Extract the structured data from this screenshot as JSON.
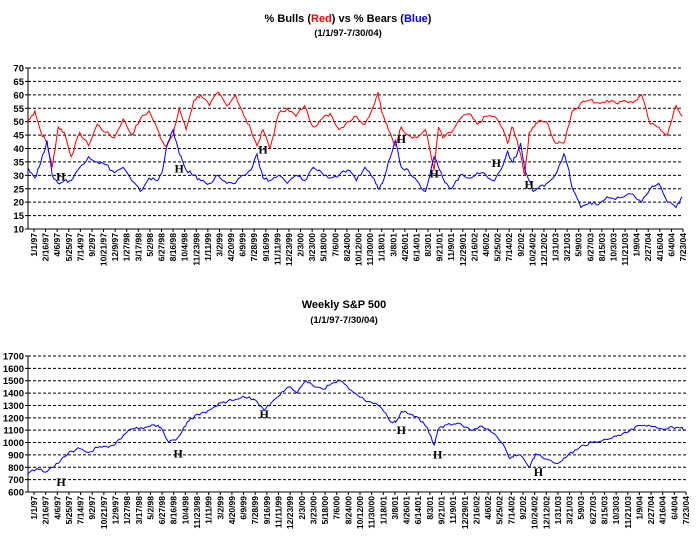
{
  "chart_data": [
    {
      "type": "line",
      "title_parts": [
        {
          "text": "% Bulls (",
          "color": "#000000"
        },
        {
          "text": "Red",
          "color": "#ff0000"
        },
        {
          "text": ") vs % Bears (",
          "color": "#000000"
        },
        {
          "text": "Blue",
          "color": "#0000ff"
        },
        {
          "text": ")",
          "color": "#000000"
        }
      ],
      "subtitle": "(1/1/97-7/30/04)",
      "ylim": [
        10,
        70
      ],
      "yticks": [
        10,
        15,
        20,
        25,
        30,
        35,
        40,
        45,
        50,
        55,
        60,
        65,
        70
      ],
      "grid": "horizontal dashed",
      "x_tick_labels": [
        "1/1/97",
        "2/16/97",
        "4/6/97",
        "5/25/97",
        "7/14/97",
        "9/2/97",
        "10/21/97",
        "12/9/97",
        "1/27/98",
        "3/17/98",
        "5/2/98",
        "6/27/98",
        "8/16/98",
        "10/4/98",
        "11/23/98",
        "1/11/99",
        "3/2/99",
        "4/20/99",
        "6/9/99",
        "7/28/99",
        "9/16/99",
        "11/11/99",
        "12/23/99",
        "2/3/00",
        "3/23/00",
        "5/18/00",
        "7/6/00",
        "8/24/00",
        "10/12/00",
        "11/30/00",
        "1/18/01",
        "3/8/01",
        "4/26/01",
        "6/14/01",
        "8/3/01",
        "9/21/01",
        "11/9/01",
        "12/29/01",
        "2/16/02",
        "4/6/02",
        "5/25/02",
        "7/14/02",
        "9/2/02",
        "10/24/02",
        "12/12/02",
        "1/31/03",
        "3/21/03",
        "5/9/03",
        "6/27/03",
        "8/15/03",
        "10/3/03",
        "11/21/03",
        "1/9/04",
        "2/27/04",
        "4/16/04",
        "6/4/04",
        "7/23/04"
      ],
      "series": [
        {
          "name": "Bulls",
          "color": "#ff0000",
          "x": [
            1997.0,
            1997.08,
            1997.15,
            1997.22,
            1997.28,
            1997.35,
            1997.42,
            1997.5,
            1997.6,
            1997.7,
            1997.8,
            1997.9,
            1998.0,
            1998.1,
            1998.2,
            1998.3,
            1998.4,
            1998.5,
            1998.55,
            1998.6,
            1998.68,
            1998.75,
            1998.83,
            1998.92,
            1999.0,
            1999.1,
            1999.2,
            1999.3,
            1999.4,
            1999.5,
            1999.58,
            1999.65,
            1999.72,
            1999.8,
            1999.9,
            2000.0,
            2000.1,
            2000.2,
            2000.3,
            2000.4,
            2000.5,
            2000.6,
            2000.7,
            2000.8,
            2000.9,
            2001.0,
            2001.05,
            2001.1,
            2001.17,
            2001.25,
            2001.32,
            2001.4,
            2001.5,
            2001.6,
            2001.7,
            2001.75,
            2001.8,
            2001.9,
            2002.0,
            2002.1,
            2002.2,
            2002.3,
            2002.4,
            2002.5,
            2002.55,
            2002.6,
            2002.65,
            2002.7,
            2002.75,
            2002.8,
            2002.85,
            2002.9,
            2003.0,
            2003.1,
            2003.2,
            2003.25,
            2003.3,
            2003.4,
            2003.5,
            2003.6,
            2003.7,
            2003.8,
            2003.9,
            2004.0,
            2004.1,
            2004.2,
            2004.3,
            2004.4,
            2004.5,
            2004.57
          ],
          "y": [
            50,
            54,
            46,
            42,
            33,
            48,
            46,
            37,
            46,
            41,
            49,
            46,
            44,
            51,
            45,
            51,
            54,
            47,
            43,
            41,
            45,
            55,
            47,
            58,
            60,
            56,
            61,
            56,
            60,
            52,
            47,
            41,
            47,
            40,
            53,
            55,
            52,
            56,
            48,
            51,
            53,
            47,
            50,
            52,
            49,
            56,
            61,
            53,
            47,
            41,
            48,
            45,
            44,
            47,
            32,
            48,
            44,
            46,
            51,
            53,
            49,
            52,
            52,
            47,
            42,
            48,
            44,
            38,
            30,
            46,
            48,
            50,
            50,
            42,
            42,
            48,
            54,
            57,
            58,
            57,
            58,
            57,
            58,
            57,
            60,
            49,
            48,
            45,
            56,
            52
          ]
        },
        {
          "name": "Bears",
          "color": "#0000ff",
          "x": [
            1997.0,
            1997.08,
            1997.15,
            1997.22,
            1997.28,
            1997.35,
            1997.42,
            1997.5,
            1997.6,
            1997.7,
            1997.8,
            1997.9,
            1998.0,
            1998.1,
            1998.2,
            1998.3,
            1998.4,
            1998.5,
            1998.55,
            1998.6,
            1998.68,
            1998.75,
            1998.83,
            1998.92,
            1999.0,
            1999.1,
            1999.2,
            1999.3,
            1999.4,
            1999.5,
            1999.58,
            1999.65,
            1999.72,
            1999.8,
            1999.9,
            2000.0,
            2000.1,
            2000.2,
            2000.3,
            2000.4,
            2000.5,
            2000.6,
            2000.7,
            2000.8,
            2000.9,
            2001.0,
            2001.05,
            2001.1,
            2001.17,
            2001.25,
            2001.32,
            2001.4,
            2001.5,
            2001.6,
            2001.7,
            2001.75,
            2001.8,
            2001.9,
            2002.0,
            2002.1,
            2002.2,
            2002.3,
            2002.4,
            2002.5,
            2002.55,
            2002.6,
            2002.65,
            2002.7,
            2002.75,
            2002.8,
            2002.85,
            2002.9,
            2003.0,
            2003.1,
            2003.2,
            2003.25,
            2003.3,
            2003.4,
            2003.5,
            2003.6,
            2003.7,
            2003.8,
            2003.9,
            2004.0,
            2004.1,
            2004.2,
            2004.3,
            2004.4,
            2004.5,
            2004.57
          ],
          "y": [
            33,
            29,
            35,
            43,
            30,
            27,
            28,
            28,
            33,
            37,
            35,
            34,
            31,
            33,
            28,
            24,
            29,
            28,
            31,
            40,
            47,
            38,
            32,
            30,
            28,
            27,
            30,
            27,
            27,
            30,
            32,
            38,
            29,
            28,
            30,
            27,
            30,
            28,
            33,
            31,
            29,
            30,
            32,
            28,
            33,
            29,
            25,
            27,
            35,
            43,
            33,
            32,
            28,
            24,
            37,
            33,
            29,
            25,
            30,
            29,
            31,
            30,
            28,
            34,
            39,
            35,
            37,
            42,
            32,
            28,
            24,
            25,
            27,
            30,
            38,
            33,
            25,
            18,
            20,
            19,
            22,
            21,
            22,
            23,
            20,
            25,
            27,
            20,
            18,
            22
          ]
        }
      ],
      "annotations": [
        {
          "label": "H",
          "x": 1997.38,
          "y": 30
        },
        {
          "label": "H",
          "x": 1998.75,
          "y": 33
        },
        {
          "label": "H",
          "x": 1999.72,
          "y": 40
        },
        {
          "label": "H",
          "x": 2001.32,
          "y": 44
        },
        {
          "label": "H",
          "x": 2001.7,
          "y": 31
        },
        {
          "label": "H",
          "x": 2002.42,
          "y": 35
        },
        {
          "label": "H",
          "x": 2002.8,
          "y": 27
        }
      ]
    },
    {
      "type": "line",
      "title": "Weekly S&P 500",
      "subtitle": "(1/1/97-7/30/04)",
      "ylim": [
        600,
        1700
      ],
      "yticks": [
        600,
        700,
        800,
        900,
        1000,
        1100,
        1200,
        1300,
        1400,
        1500,
        1600,
        1700
      ],
      "grid": "horizontal dashed",
      "x_tick_labels": [
        "1/1/97",
        "2/16/97",
        "4/6/97",
        "5/25/97",
        "7/14/97",
        "9/2/97",
        "10/21/97",
        "12/9/97",
        "1/27/98",
        "3/17/98",
        "5/2/98",
        "6/27/98",
        "8/16/98",
        "10/4/98",
        "11/23/98",
        "1/11/99",
        "3/2/99",
        "4/20/99",
        "6/9/99",
        "7/28/99",
        "9/16/99",
        "11/11/99",
        "12/23/99",
        "2/3/00",
        "3/23/00",
        "5/18/00",
        "7/6/00",
        "8/24/00",
        "10/12/00",
        "11/30/00",
        "1/18/01",
        "3/8/01",
        "4/26/01",
        "6/14/01",
        "8/3/01",
        "9/21/01",
        "11/9/01",
        "12/29/01",
        "2/16/02",
        "4/6/02",
        "5/25/02",
        "7/14/02",
        "9/2/02",
        "10/24/02",
        "12/12/02",
        "1/31/03",
        "3/21/03",
        "5/9/03",
        "6/27/03",
        "8/15/03",
        "10/3/03",
        "11/21/03",
        "1/9/04",
        "2/27/04",
        "4/16/04",
        "6/4/04",
        "7/23/04"
      ],
      "series": [
        {
          "name": "S&P 500",
          "color": "#0000ff",
          "x": [
            1997.0,
            1997.1,
            1997.2,
            1997.3,
            1997.4,
            1997.5,
            1997.6,
            1997.7,
            1997.8,
            1997.9,
            1998.0,
            1998.1,
            1998.2,
            1998.3,
            1998.4,
            1998.5,
            1998.55,
            1998.62,
            1998.7,
            1998.78,
            1998.85,
            1998.95,
            1999.05,
            1999.15,
            1999.25,
            1999.35,
            1999.45,
            1999.55,
            1999.65,
            1999.72,
            1999.8,
            1999.9,
            2000.0,
            2000.1,
            2000.2,
            2000.3,
            2000.4,
            2000.5,
            2000.6,
            2000.7,
            2000.8,
            2000.9,
            2001.0,
            2001.1,
            2001.2,
            2001.25,
            2001.3,
            2001.4,
            2001.5,
            2001.6,
            2001.68,
            2001.72,
            2001.8,
            2001.9,
            2002.0,
            2002.1,
            2002.2,
            2002.3,
            2002.4,
            2002.5,
            2002.55,
            2002.6,
            2002.7,
            2002.78,
            2002.85,
            2002.9,
            2003.0,
            2003.1,
            2003.2,
            2003.3,
            2003.4,
            2003.5,
            2003.6,
            2003.7,
            2003.8,
            2003.9,
            2004.0,
            2004.1,
            2004.2,
            2004.3,
            2004.4,
            2004.5,
            2004.57
          ],
          "y": [
            750,
            790,
            760,
            800,
            880,
            930,
            950,
            920,
            960,
            970,
            980,
            1060,
            1110,
            1120,
            1130,
            1140,
            1100,
            1000,
            1020,
            1100,
            1170,
            1230,
            1240,
            1290,
            1330,
            1340,
            1360,
            1370,
            1320,
            1260,
            1320,
            1380,
            1450,
            1400,
            1500,
            1450,
            1430,
            1480,
            1500,
            1430,
            1380,
            1330,
            1320,
            1250,
            1160,
            1180,
            1250,
            1230,
            1200,
            1120,
            980,
            1100,
            1140,
            1150,
            1140,
            1100,
            1130,
            1110,
            1050,
            950,
            870,
            900,
            880,
            800,
            910,
            900,
            860,
            830,
            880,
            940,
            980,
            1000,
            1010,
            1030,
            1060,
            1080,
            1130,
            1140,
            1130,
            1110,
            1130,
            1120,
            1100
          ]
        }
      ],
      "annotations": [
        {
          "label": "H",
          "x": 1997.38,
          "y": 690
        },
        {
          "label": "H",
          "x": 1998.73,
          "y": 920
        },
        {
          "label": "H",
          "x": 1999.72,
          "y": 1240
        },
        {
          "label": "H",
          "x": 2001.3,
          "y": 1110
        },
        {
          "label": "H",
          "x": 2001.72,
          "y": 910
        },
        {
          "label": "H",
          "x": 2002.88,
          "y": 770
        }
      ]
    }
  ]
}
